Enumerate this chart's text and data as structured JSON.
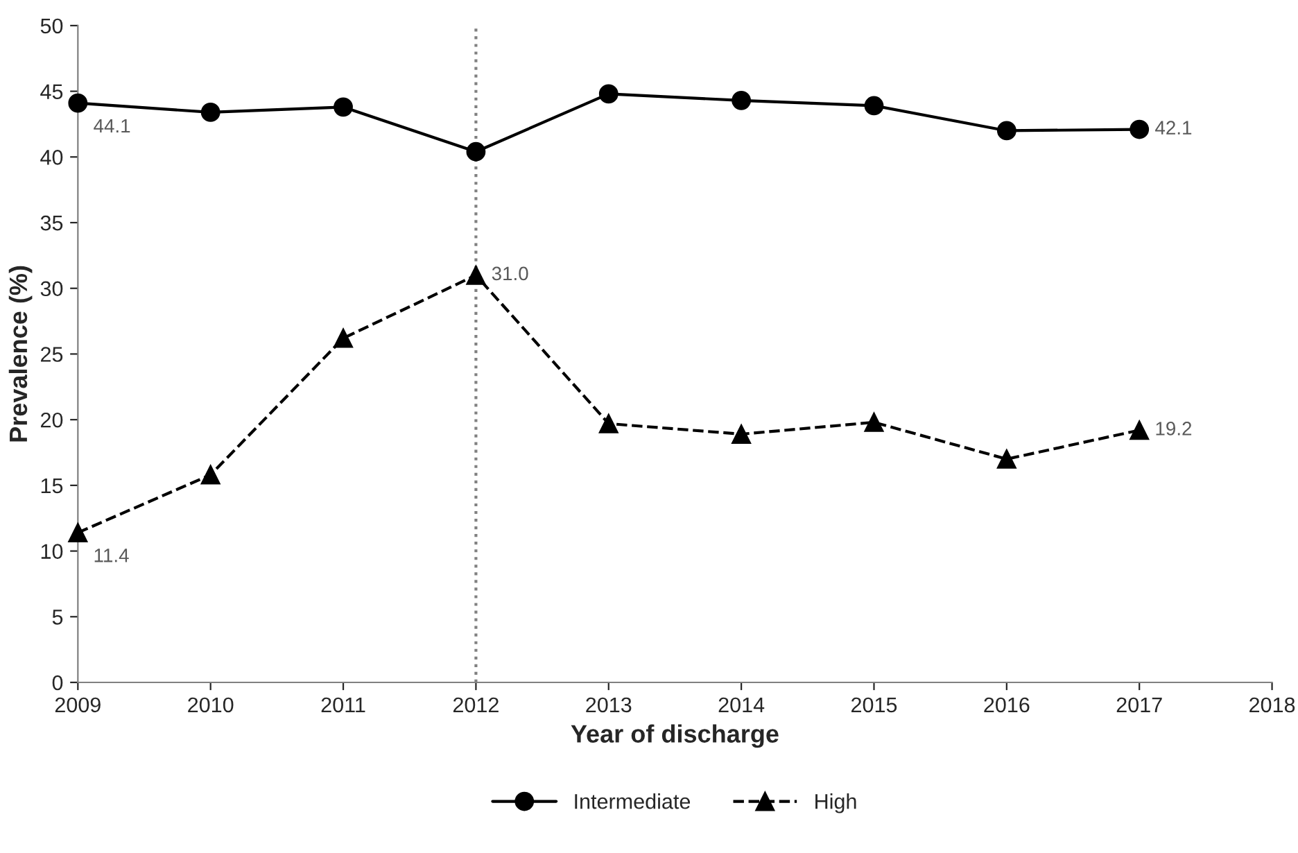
{
  "chart_data": {
    "type": "line",
    "xlabel": "Year of discharge",
    "ylabel": "Prevalence (%)",
    "x": [
      2009,
      2010,
      2011,
      2012,
      2013,
      2014,
      2015,
      2016,
      2017
    ],
    "series": [
      {
        "name": "Intermediate",
        "color": "#000000",
        "marker": "circle",
        "line_style": "solid",
        "values": [
          44.1,
          43.4,
          43.8,
          40.4,
          44.8,
          44.3,
          43.9,
          42.0,
          42.1
        ],
        "value_labels": [
          "44.1",
          null,
          null,
          null,
          null,
          null,
          null,
          null,
          "42.1"
        ]
      },
      {
        "name": "High",
        "color": "#000000",
        "marker": "triangle",
        "line_style": "dashed",
        "values": [
          11.4,
          15.8,
          26.2,
          31.0,
          19.7,
          18.9,
          19.8,
          17.0,
          19.2
        ],
        "value_labels": [
          "11.4",
          null,
          null,
          "31.0",
          null,
          null,
          null,
          null,
          "19.2"
        ]
      }
    ],
    "xlim": [
      2009,
      2018
    ],
    "xticks": [
      2009,
      2010,
      2011,
      2012,
      2013,
      2014,
      2015,
      2016,
      2017,
      2018
    ],
    "ylim": [
      0,
      50
    ],
    "yticks": [
      0,
      5,
      10,
      15,
      20,
      25,
      30,
      35,
      40,
      45,
      50
    ],
    "ref_lines": [
      {
        "axis": "x",
        "value": 2012,
        "color": "#808080",
        "line_style": "dotted"
      }
    ],
    "grid": false,
    "legend": "bottom"
  }
}
